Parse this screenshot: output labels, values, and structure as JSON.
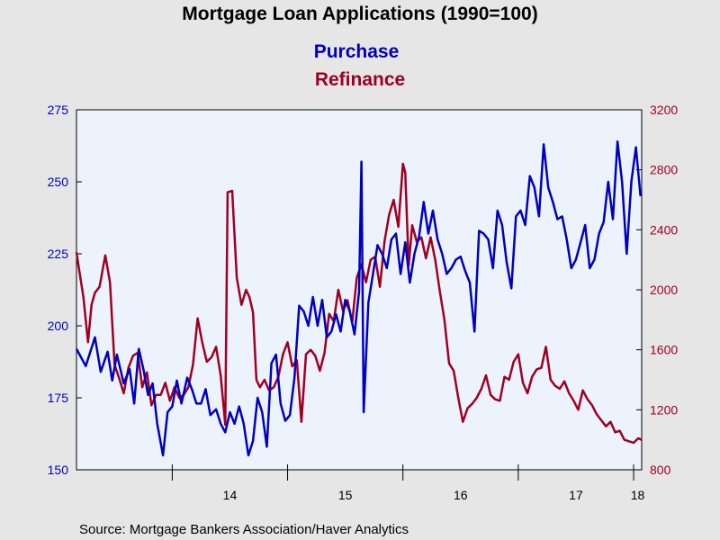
{
  "colors": {
    "purchase": "#0000c0",
    "refinance": "#a00020",
    "plot_bg": "#edf3fd",
    "page_bg": "#e6e6e6"
  },
  "chart_data": {
    "type": "line",
    "title": "Mortgage Loan Applications (1990=100)",
    "source": "Source:  Mortgage Bankers Association/Haver Analytics",
    "grid": false,
    "legend_position": "top-center",
    "x_range": [
      2013.17,
      2018.07
    ],
    "x_ticks": [
      {
        "label": "14",
        "value": 2014
      },
      {
        "label": "15",
        "value": 2015
      },
      {
        "label": "16",
        "value": 2016
      },
      {
        "label": "17",
        "value": 2017
      },
      {
        "label": "18",
        "value": 2018
      }
    ],
    "y_left": {
      "range": [
        150,
        275
      ],
      "ticks": [
        "150",
        "175",
        "200",
        "225",
        "250",
        "275"
      ]
    },
    "y_right": {
      "range": [
        800,
        3200
      ],
      "ticks": [
        "800",
        "1200",
        "1600",
        "2000",
        "2400",
        "2800",
        "3200"
      ]
    },
    "series": [
      {
        "name": "Purchase",
        "axis": "left",
        "x": [
          2013.17,
          2013.25,
          2013.33,
          2013.38,
          2013.44,
          2013.48,
          2013.52,
          2013.58,
          2013.63,
          2013.67,
          2013.71,
          2013.75,
          2013.79,
          2013.83,
          2013.87,
          2013.92,
          2013.96,
          2014.0,
          2014.04,
          2014.08,
          2014.13,
          2014.17,
          2014.21,
          2014.25,
          2014.29,
          2014.33,
          2014.38,
          2014.42,
          2014.46,
          2014.5,
          2014.54,
          2014.58,
          2014.62,
          2014.66,
          2014.7,
          2014.74,
          2014.78,
          2014.82,
          2014.86,
          2014.9,
          2014.94,
          2014.98,
          2015.02,
          2015.06,
          2015.1,
          2015.14,
          2015.18,
          2015.22,
          2015.26,
          2015.3,
          2015.34,
          2015.38,
          2015.42,
          2015.46,
          2015.5,
          2015.54,
          2015.58,
          2015.62,
          2015.64,
          2015.66,
          2015.7,
          2015.74,
          2015.78,
          2015.82,
          2015.86,
          2015.9,
          2015.94,
          2015.98,
          2016.02,
          2016.06,
          2016.1,
          2016.14,
          2016.18,
          2016.22,
          2016.26,
          2016.3,
          2016.34,
          2016.38,
          2016.42,
          2016.46,
          2016.5,
          2016.54,
          2016.58,
          2016.62,
          2016.66,
          2016.7,
          2016.74,
          2016.78,
          2016.82,
          2016.86,
          2016.9,
          2016.94,
          2016.98,
          2017.02,
          2017.06,
          2017.1,
          2017.14,
          2017.18,
          2017.22,
          2017.26,
          2017.3,
          2017.34,
          2017.38,
          2017.42,
          2017.46,
          2017.5,
          2017.54,
          2017.58,
          2017.62,
          2017.66,
          2017.7,
          2017.74,
          2017.78,
          2017.82,
          2017.86,
          2017.9,
          2017.94,
          2017.98,
          2018.02,
          2018.06
        ],
        "values": [
          192,
          186,
          196,
          184,
          191,
          181,
          190,
          180,
          185,
          173,
          192,
          185,
          176,
          180,
          166,
          155,
          170,
          172,
          181,
          173,
          182,
          178,
          173,
          173,
          178,
          169,
          171,
          166,
          163,
          170,
          166,
          172,
          166,
          155,
          160,
          175,
          170,
          158,
          187,
          190,
          173,
          167,
          169,
          182,
          207,
          205,
          200,
          210,
          200,
          209,
          196,
          198,
          204,
          198,
          209,
          205,
          197,
          212,
          257,
          170,
          208,
          218,
          228,
          225,
          220,
          230,
          232,
          218,
          229,
          215,
          225,
          231,
          243,
          232,
          240,
          230,
          225,
          218,
          220,
          223,
          224,
          219,
          215,
          198,
          233,
          232,
          230,
          220,
          240,
          235,
          222,
          213,
          238,
          240,
          235,
          252,
          248,
          238,
          263,
          248,
          243,
          237,
          238,
          230,
          220,
          223,
          229,
          235,
          220,
          223,
          232,
          236,
          250,
          237,
          264,
          250,
          225,
          250,
          262,
          245
        ]
      },
      {
        "name": "Refinance",
        "axis": "right",
        "x": [
          2013.17,
          2013.2,
          2013.23,
          2013.27,
          2013.3,
          2013.33,
          2013.37,
          2013.42,
          2013.46,
          2013.5,
          2013.54,
          2013.58,
          2013.62,
          2013.66,
          2013.7,
          2013.74,
          2013.78,
          2013.82,
          2013.86,
          2013.9,
          2013.94,
          2013.98,
          2014.02,
          2014.06,
          2014.1,
          2014.14,
          2014.18,
          2014.22,
          2014.26,
          2014.3,
          2014.34,
          2014.38,
          2014.42,
          2014.46,
          2014.48,
          2014.52,
          2014.56,
          2014.6,
          2014.64,
          2014.67,
          2014.7,
          2014.73,
          2014.76,
          2014.8,
          2014.84,
          2014.88,
          2014.92,
          2014.96,
          2015.0,
          2015.04,
          2015.08,
          2015.12,
          2015.16,
          2015.2,
          2015.24,
          2015.28,
          2015.32,
          2015.36,
          2015.4,
          2015.44,
          2015.48,
          2015.52,
          2015.56,
          2015.6,
          2015.64,
          2015.68,
          2015.72,
          2015.76,
          2015.8,
          2015.84,
          2015.88,
          2015.92,
          2015.96,
          2016.0,
          2016.02,
          2016.05,
          2016.08,
          2016.12,
          2016.16,
          2016.2,
          2016.24,
          2016.28,
          2016.32,
          2016.36,
          2016.4,
          2016.44,
          2016.48,
          2016.52,
          2016.56,
          2016.6,
          2016.64,
          2016.68,
          2016.72,
          2016.76,
          2016.8,
          2016.84,
          2016.88,
          2016.92,
          2016.96,
          2017.0,
          2017.04,
          2017.08,
          2017.12,
          2017.16,
          2017.2,
          2017.24,
          2017.28,
          2017.32,
          2017.36,
          2017.4,
          2017.44,
          2017.48,
          2017.52,
          2017.56,
          2017.6,
          2017.64,
          2017.68,
          2017.72,
          2017.76,
          2017.8,
          2017.84,
          2017.88,
          2017.92,
          2017.96,
          2018.0,
          2018.04,
          2018.07
        ],
        "values": [
          2250,
          2100,
          1950,
          1650,
          1900,
          1980,
          2020,
          2230,
          2050,
          1500,
          1410,
          1310,
          1480,
          1560,
          1580,
          1350,
          1450,
          1230,
          1300,
          1300,
          1380,
          1260,
          1350,
          1280,
          1300,
          1350,
          1500,
          1810,
          1650,
          1520,
          1550,
          1620,
          1430,
          1100,
          2650,
          2660,
          2080,
          1900,
          2000,
          1950,
          1850,
          1400,
          1350,
          1400,
          1330,
          1350,
          1420,
          1570,
          1650,
          1490,
          1530,
          1120,
          1570,
          1600,
          1560,
          1460,
          1580,
          1840,
          1790,
          2000,
          1860,
          1930,
          1780,
          2080,
          2170,
          2050,
          2200,
          2220,
          2020,
          2320,
          2500,
          2600,
          2420,
          2840,
          2780,
          2160,
          2430,
          2320,
          2350,
          2210,
          2350,
          2200,
          1990,
          1800,
          1510,
          1460,
          1280,
          1120,
          1210,
          1240,
          1280,
          1340,
          1430,
          1300,
          1270,
          1260,
          1420,
          1400,
          1520,
          1570,
          1380,
          1310,
          1420,
          1470,
          1480,
          1620,
          1400,
          1360,
          1340,
          1390,
          1310,
          1260,
          1200,
          1330,
          1270,
          1230,
          1170,
          1130,
          1090,
          1120,
          1050,
          1060,
          1000,
          990,
          980,
          1010,
          1000
        ]
      }
    ]
  }
}
